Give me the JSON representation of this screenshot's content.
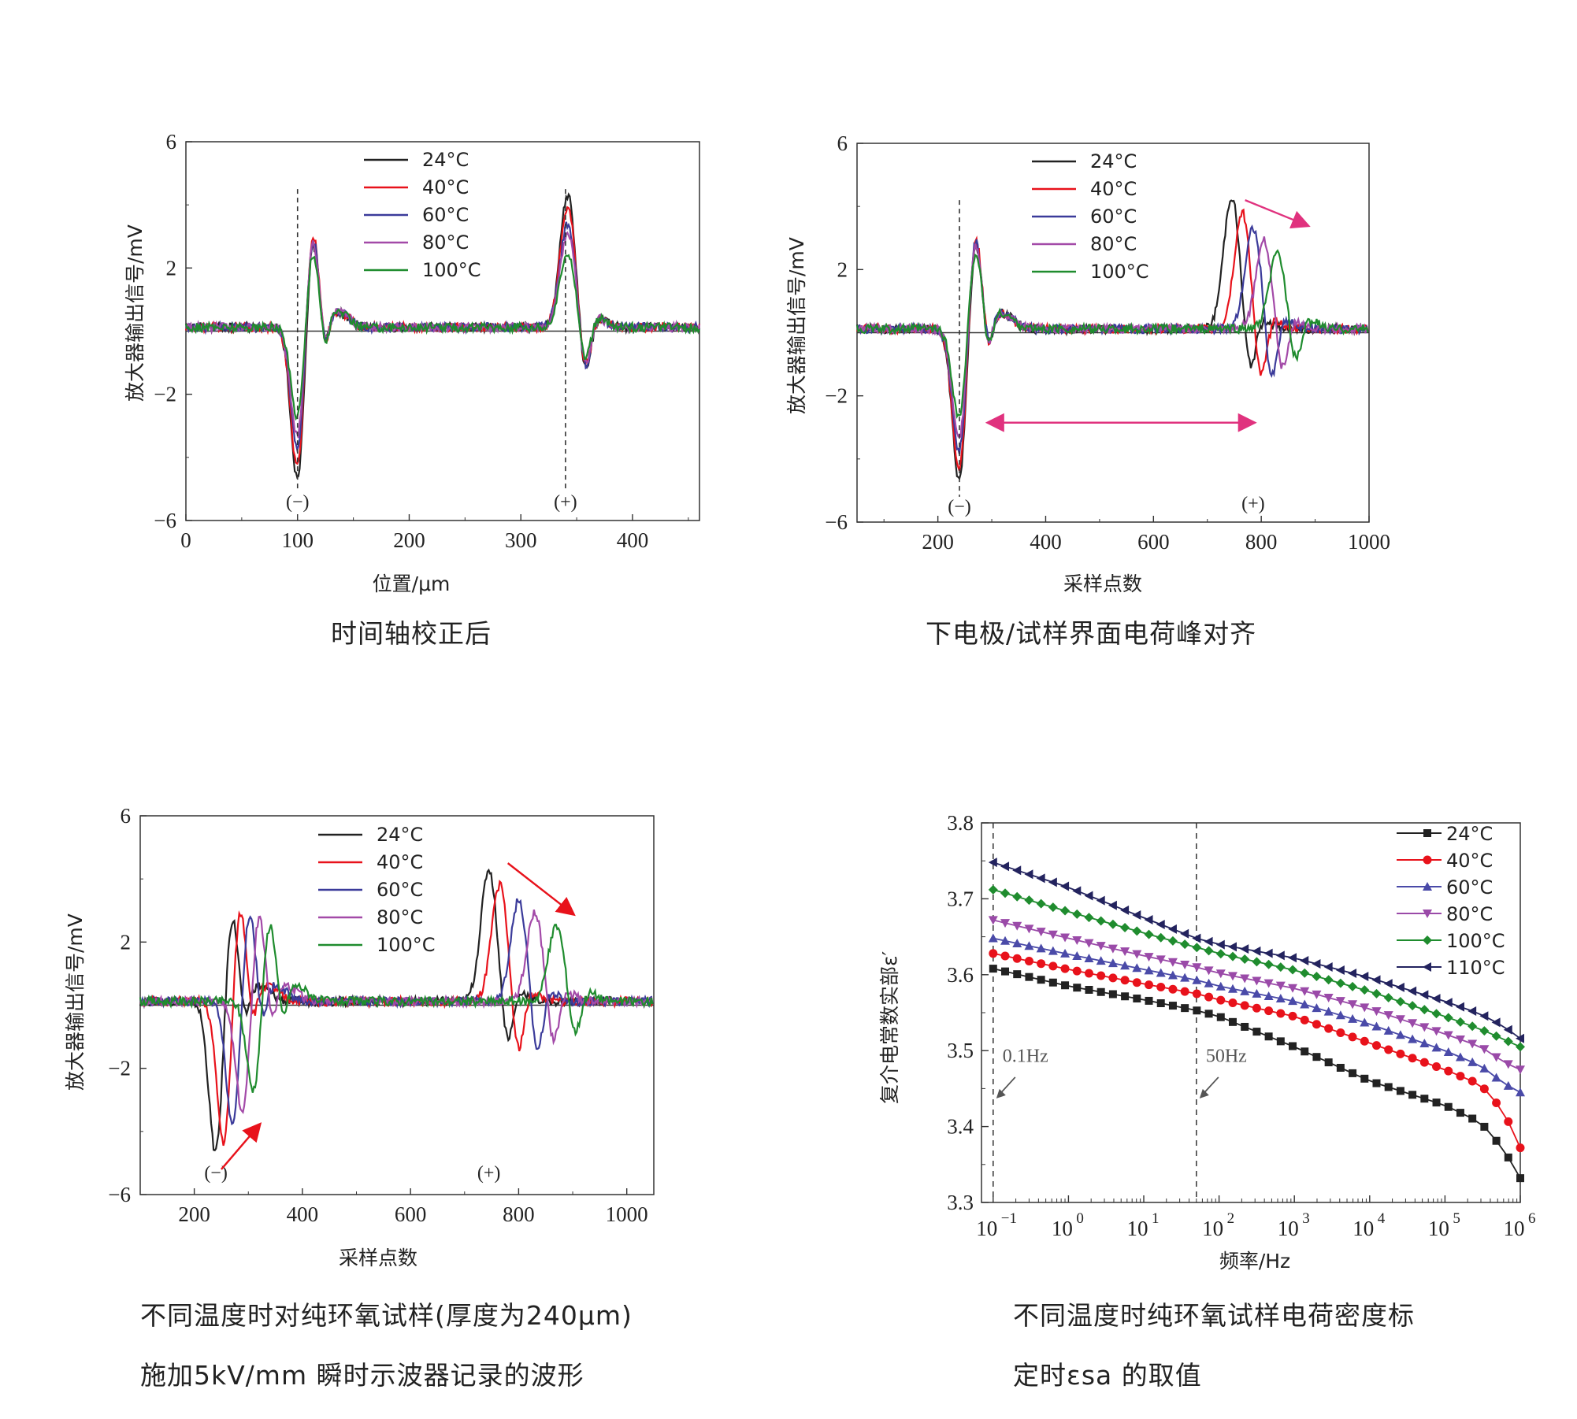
{
  "captions": {
    "c1": "时间轴校正后",
    "c2": "下电极/试样界面电荷峰对齐",
    "c3_line1": "不同温度时对纯环氧试样(厚度为240μm)",
    "c3_line2": "施加5kV/mm 瞬时示波器记录的波形",
    "c4_line1": "不同温度时纯环氧试样电荷密度标",
    "c4_line2": "定时εsa 的取值"
  },
  "colors": {
    "s24": "#222222",
    "s40": "#e8121b",
    "s60": "#3b3b9a",
    "s80": "#a34aa8",
    "s100": "#1f8c2e",
    "s110": "#23235e",
    "arrow_pink": "#e0327e",
    "arrow_red": "#e8121b"
  },
  "chart_data": [
    {
      "type": "line",
      "xlabel": "位置/μm",
      "ylabel": "放大器输出信号/mV",
      "xlim": [
        0,
        460
      ],
      "ylim": [
        -6,
        6
      ],
      "xticks": [
        "0",
        "100",
        "200",
        "300",
        "400"
      ],
      "yticks": [
        "6",
        "2",
        "−2",
        "−6"
      ],
      "annotations": [
        "(−)",
        "(+)"
      ],
      "peak_markers_x": [
        100,
        340
      ],
      "series": [
        {
          "name": "24°C",
          "neg_peak": [
            100,
            -4.9
          ],
          "pos_peak": [
            342,
            4.2
          ],
          "rebound": [
            124,
            2.8
          ]
        },
        {
          "name": "40°C",
          "neg_peak": [
            100,
            -4.6
          ],
          "pos_peak": [
            342,
            3.8
          ],
          "rebound": [
            126,
            2.9
          ]
        },
        {
          "name": "60°C",
          "neg_peak": [
            100,
            -4.0
          ],
          "pos_peak": [
            342,
            3.3
          ],
          "rebound": [
            126,
            2.7
          ]
        },
        {
          "name": "80°C",
          "neg_peak": [
            100,
            -3.6
          ],
          "pos_peak": [
            342,
            3.0
          ],
          "rebound": [
            126,
            2.6
          ]
        },
        {
          "name": "100°C",
          "neg_peak": [
            100,
            -2.9
          ],
          "pos_peak": [
            342,
            2.4
          ],
          "rebound": [
            126,
            2.2
          ]
        }
      ]
    },
    {
      "type": "line",
      "xlabel": "采样点数",
      "ylabel": "放大器输出信号/mV",
      "xlim": [
        50,
        1000
      ],
      "ylim": [
        -6,
        6
      ],
      "xticks": [
        "200",
        "400",
        "600",
        "800",
        "1000"
      ],
      "yticks": [
        "6",
        "2",
        "−2",
        "−6"
      ],
      "annotations": [
        "(−)",
        "(+)"
      ],
      "peak_marker_x": 240,
      "series": [
        {
          "name": "24°C",
          "neg_peak": [
            240,
            -4.9
          ],
          "pos_peak": [
            745,
            4.2
          ]
        },
        {
          "name": "40°C",
          "neg_peak": [
            240,
            -4.6
          ],
          "pos_peak": [
            765,
            3.7
          ]
        },
        {
          "name": "60°C",
          "neg_peak": [
            240,
            -4.0
          ],
          "pos_peak": [
            785,
            3.2
          ]
        },
        {
          "name": "80°C",
          "neg_peak": [
            240,
            -3.6
          ],
          "pos_peak": [
            805,
            2.8
          ]
        },
        {
          "name": "100°C",
          "neg_peak": [
            240,
            -2.9
          ],
          "pos_peak": [
            830,
            2.4
          ]
        }
      ]
    },
    {
      "type": "line",
      "xlabel": "采样点数",
      "ylabel": "放大器输出信号/mV",
      "xlim": [
        100,
        1050
      ],
      "ylim": [
        -6,
        6
      ],
      "xticks": [
        "200",
        "400",
        "600",
        "800",
        "1000"
      ],
      "yticks": [
        "6",
        "2",
        "−2",
        "−6"
      ],
      "annotations": [
        "(−)",
        "(+)"
      ],
      "series": [
        {
          "name": "24°C",
          "neg_peak": [
            240,
            -4.9
          ],
          "pos_peak": [
            745,
            4.2
          ]
        },
        {
          "name": "40°C",
          "neg_peak": [
            255,
            -4.6
          ],
          "pos_peak": [
            765,
            3.7
          ]
        },
        {
          "name": "60°C",
          "neg_peak": [
            272,
            -4.0
          ],
          "pos_peak": [
            800,
            3.2
          ]
        },
        {
          "name": "80°C",
          "neg_peak": [
            290,
            -3.6
          ],
          "pos_peak": [
            830,
            2.8
          ]
        },
        {
          "name": "100°C",
          "neg_peak": [
            310,
            -2.9
          ],
          "pos_peak": [
            870,
            2.4
          ]
        }
      ]
    },
    {
      "type": "line",
      "xscale": "log",
      "xlabel": "频率/Hz",
      "ylabel": "复介电常数实部ε′",
      "xlim": [
        0.07,
        1000000
      ],
      "ylim": [
        3.3,
        3.8
      ],
      "xticks": [
        "10",
        "10",
        "10",
        "10",
        "10",
        "10",
        "10",
        "10"
      ],
      "xtick_exps": [
        "−1",
        "0",
        "1",
        "2",
        "3",
        "4",
        "5",
        "6"
      ],
      "yticks": [
        "3.8",
        "3.7",
        "3.6",
        "3.5",
        "3.4",
        "3.3"
      ],
      "annotations": [
        "0.1Hz",
        "50Hz"
      ],
      "vlines_hz": [
        0.1,
        50
      ],
      "series": [
        {
          "name": "24°C",
          "marker": "square",
          "x": [
            0.1,
            1,
            10,
            50,
            100,
            1000,
            10000,
            100000,
            300000,
            600000,
            1000000
          ],
          "y": [
            3.608,
            3.585,
            3.567,
            3.553,
            3.545,
            3.505,
            3.46,
            3.428,
            3.405,
            3.37,
            3.332
          ]
        },
        {
          "name": "40°C",
          "marker": "circle",
          "x": [
            0.1,
            1,
            10,
            50,
            100,
            1000,
            10000,
            100000,
            300000,
            600000,
            1000000
          ],
          "y": [
            3.628,
            3.607,
            3.588,
            3.575,
            3.567,
            3.545,
            3.51,
            3.475,
            3.455,
            3.42,
            3.372
          ]
        },
        {
          "name": "60°C",
          "marker": "triangle-up",
          "x": [
            0.1,
            1,
            10,
            50,
            100,
            1000,
            10000,
            100000,
            300000,
            600000,
            1000000
          ],
          "y": [
            3.648,
            3.627,
            3.607,
            3.593,
            3.585,
            3.565,
            3.535,
            3.5,
            3.48,
            3.457,
            3.445
          ]
        },
        {
          "name": "80°C",
          "marker": "triangle-down",
          "x": [
            0.1,
            1,
            10,
            50,
            100,
            1000,
            10000,
            100000,
            300000,
            600000,
            1000000
          ],
          "y": [
            3.672,
            3.648,
            3.625,
            3.61,
            3.602,
            3.582,
            3.555,
            3.522,
            3.505,
            3.485,
            3.475
          ]
        },
        {
          "name": "100°C",
          "marker": "diamond",
          "x": [
            0.1,
            1,
            10,
            50,
            100,
            1000,
            10000,
            100000,
            300000,
            600000,
            1000000
          ],
          "y": [
            3.712,
            3.683,
            3.655,
            3.636,
            3.628,
            3.606,
            3.578,
            3.545,
            3.528,
            3.515,
            3.505
          ]
        },
        {
          "name": "110°C",
          "marker": "triangle-left",
          "x": [
            0.1,
            1,
            10,
            50,
            100,
            1000,
            10000,
            100000,
            300000,
            600000,
            1000000
          ],
          "y": [
            3.748,
            3.715,
            3.675,
            3.648,
            3.64,
            3.622,
            3.596,
            3.565,
            3.548,
            3.532,
            3.516
          ]
        }
      ]
    }
  ]
}
